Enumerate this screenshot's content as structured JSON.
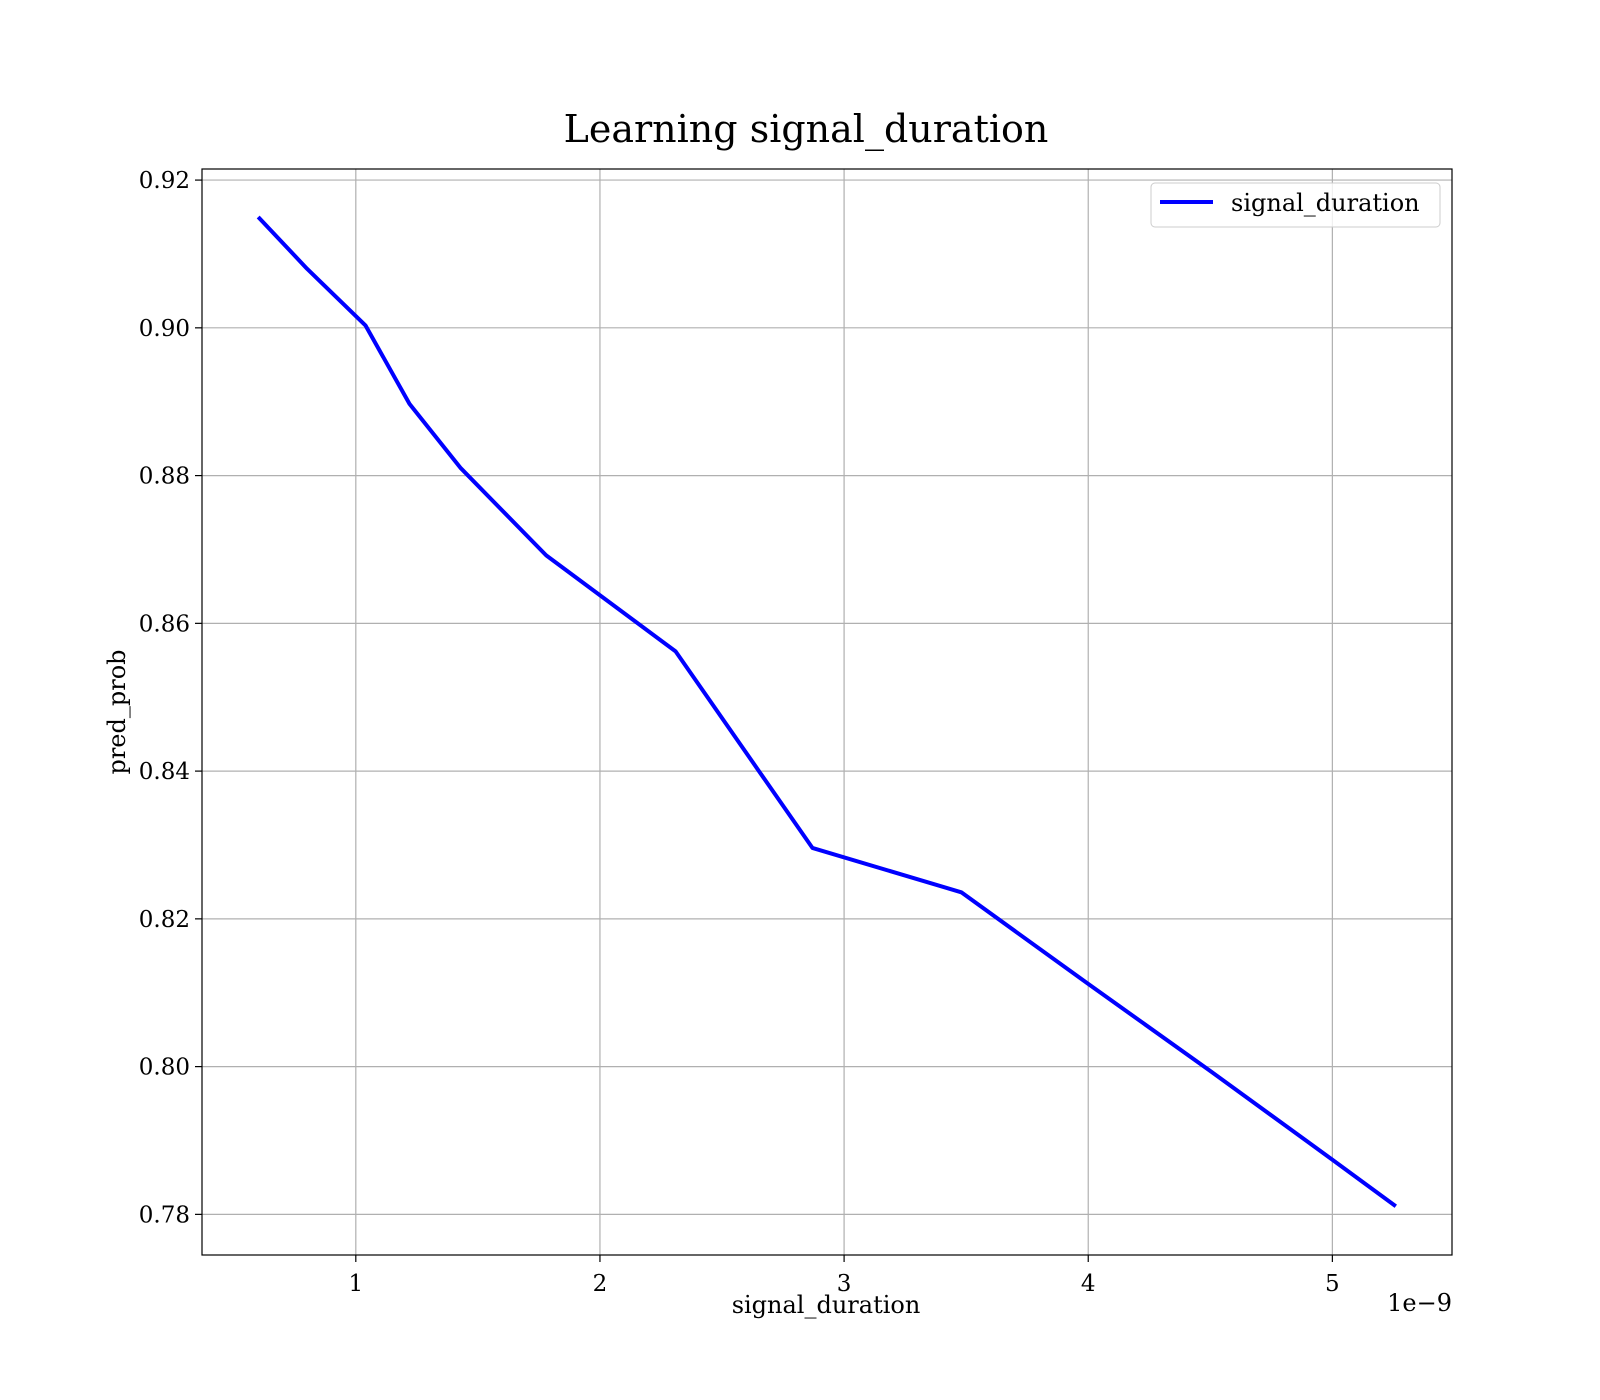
{
  "chart_data": {
    "type": "line",
    "title": "Learning signal_duration",
    "xlabel": "signal_duration",
    "ylabel": "pred_prob",
    "x_offset_label": "1e−9",
    "xlim": [
      0.37,
      5.49
    ],
    "ylim": [
      0.7745,
      0.9215
    ],
    "x_ticks": [
      1,
      2,
      3,
      4,
      5
    ],
    "x_tick_labels": [
      "1",
      "2",
      "3",
      "4",
      "5"
    ],
    "y_ticks": [
      0.78,
      0.8,
      0.82,
      0.84,
      0.86,
      0.88,
      0.9,
      0.92
    ],
    "y_tick_labels": [
      "0.78",
      "0.80",
      "0.82",
      "0.84",
      "0.86",
      "0.88",
      "0.90",
      "0.92"
    ],
    "grid": true,
    "legend_position": "top-right",
    "series": [
      {
        "name": "signal_duration",
        "color": "#0000ff",
        "x": [
          0.6,
          0.8,
          1.04,
          1.22,
          1.43,
          1.78,
          2.31,
          2.87,
          3.48,
          4.0,
          4.5,
          5.0,
          5.26
        ],
        "y": [
          0.915,
          0.908,
          0.9003,
          0.8897,
          0.881,
          0.8692,
          0.8562,
          0.8296,
          0.8236,
          0.8112,
          0.7994,
          0.7874,
          0.7811
        ]
      }
    ]
  }
}
